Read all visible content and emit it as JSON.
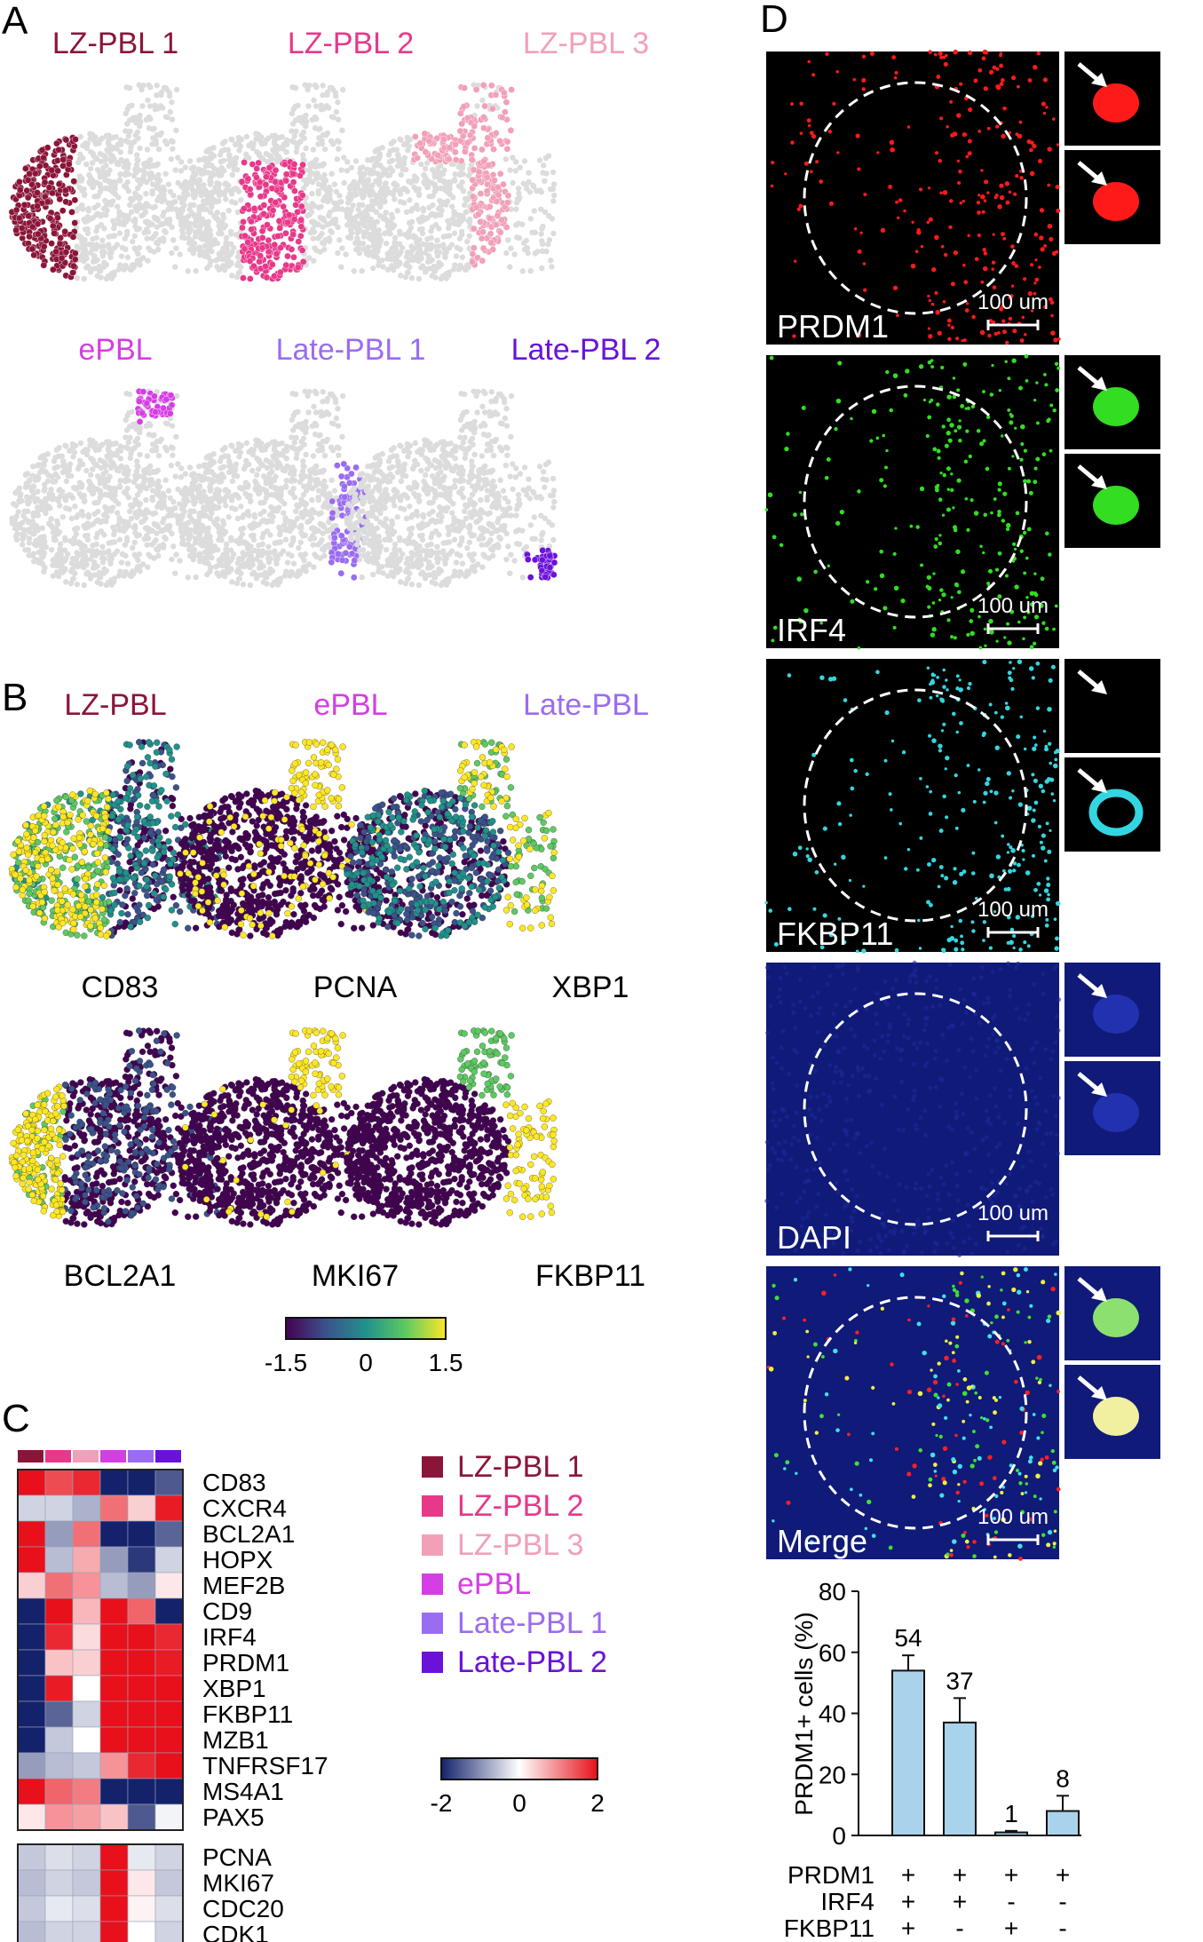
{
  "panel_letters": [
    "A",
    "B",
    "C",
    "D"
  ],
  "colors": {
    "LZ-PBL 1": "#8b1538",
    "LZ-PBL 2": "#e8388a",
    "LZ-PBL 3": "#f2a0b8",
    "ePBL": "#d53ee3",
    "Late-PBL 1": "#9a6cf2",
    "Late-PBL 2": "#6a12d8",
    "umap_background": "#dcdcdc"
  },
  "panelA": {
    "clusters": [
      "LZ-PBL 1",
      "LZ-PBL 2",
      "LZ-PBL 3",
      "ePBL",
      "Late-PBL 1",
      "Late-PBL 2"
    ]
  },
  "panelB": {
    "headers": [
      "LZ-PBL",
      "ePBL",
      "Late-PBL"
    ],
    "genes_row1": [
      "CD83",
      "PCNA",
      "XBP1"
    ],
    "genes_row2": [
      "BCL2A1",
      "MKI67",
      "FKBP11"
    ],
    "colorbar": {
      "ticks": [
        "-1.5",
        "0",
        "1.5"
      ],
      "colormap": "viridis"
    }
  },
  "panelC": {
    "column_groups": [
      "LZ-PBL 1",
      "LZ-PBL 2",
      "LZ-PBL 3",
      "ePBL",
      "Late-PBL 1",
      "Late-PBL 2"
    ],
    "genes_main": [
      "CD83",
      "CXCR4",
      "BCL2A1",
      "HOPX",
      "MEF2B",
      "CD9",
      "IRF4",
      "PRDM1",
      "XBP1",
      "FKBP11",
      "MZB1",
      "TNFRSF17",
      "MS4A1",
      "PAX5"
    ],
    "genes_cycle": [
      "PCNA",
      "MKI67",
      "CDC20",
      "CDK1"
    ],
    "values_main": [
      [
        2,
        1.5,
        1.8,
        -2,
        -2,
        -1.5
      ],
      [
        -0.4,
        -0.4,
        -0.7,
        1.2,
        0.4,
        1.9
      ],
      [
        2,
        -0.9,
        1.2,
        -2,
        -2,
        -1.4
      ],
      [
        2,
        -0.6,
        0.7,
        -0.9,
        -1.8,
        -0.4
      ],
      [
        0.4,
        1.2,
        0.9,
        -0.6,
        -0.9,
        0.2
      ],
      [
        -2,
        2,
        0.6,
        2,
        1.3,
        -2
      ],
      [
        -2,
        1.8,
        0.3,
        2,
        2,
        1.8
      ],
      [
        -2,
        0.5,
        0.4,
        2,
        2,
        1.9
      ],
      [
        -2,
        1.9,
        0.0,
        2,
        2,
        2
      ],
      [
        -2,
        -1.4,
        -0.4,
        2,
        2,
        2
      ],
      [
        -2,
        -0.5,
        0.0,
        2,
        2,
        2
      ],
      [
        -0.9,
        -0.6,
        -0.5,
        0.9,
        1.8,
        2
      ],
      [
        2,
        1.3,
        1.1,
        -2,
        -2,
        -2
      ],
      [
        0.2,
        0.9,
        0.8,
        0.5,
        -1.5,
        -0.1
      ]
    ],
    "values_cycle": [
      [
        -0.5,
        -0.3,
        -0.4,
        2,
        -0.2,
        -0.4
      ],
      [
        -0.6,
        -0.4,
        -0.5,
        2,
        0.2,
        -0.5
      ],
      [
        -0.5,
        -0.2,
        -0.3,
        2,
        0.1,
        -0.3
      ],
      [
        -0.6,
        -0.4,
        -0.4,
        2,
        0.0,
        -0.4
      ]
    ],
    "legend": [
      "LZ-PBL 1",
      "LZ-PBL 2",
      "LZ-PBL 3",
      "ePBL",
      "Late-PBL 1",
      "Late-PBL 2"
    ],
    "colorbar": {
      "ticks": [
        "-2",
        "0",
        "2"
      ],
      "colormap": "blue-white-red"
    }
  },
  "panelD": {
    "channels": [
      {
        "name": "PRDM1",
        "color": "#ff1a1a",
        "bg": "#000000"
      },
      {
        "name": "IRF4",
        "color": "#33dd22",
        "bg": "#000000"
      },
      {
        "name": "FKBP11",
        "color": "#33d6e0",
        "bg": "#000000"
      },
      {
        "name": "DAPI",
        "color": "#2233bb",
        "bg": "#101a78"
      },
      {
        "name": "Merge",
        "color": "#e8e040",
        "bg": "#101a78"
      }
    ],
    "scale_bar": "100 um"
  },
  "chart_data": {
    "type": "bar",
    "categories": [
      "PRDM1+ IRF4+ FKBP11+",
      "PRDM1+ IRF4+ FKBP11-",
      "PRDM1+ IRF4- FKBP11+",
      "PRDM1+ IRF4- FKBP11-"
    ],
    "values": [
      54,
      37,
      1,
      8
    ],
    "errors": [
      5,
      8,
      0.5,
      5
    ],
    "data_labels": [
      "54",
      "37",
      "1",
      "8"
    ],
    "ylabel": "PRDM1+ cells (%)",
    "ylim": [
      0,
      80
    ],
    "yticks": [
      "0",
      "20",
      "40",
      "60",
      "80"
    ],
    "bar_color": "#a9d3ea",
    "row_labels": [
      "PRDM1",
      "IRF4",
      "FKBP11"
    ],
    "sign_table": [
      [
        "+",
        "+",
        "+",
        "+"
      ],
      [
        "+",
        "+",
        "-",
        "-"
      ],
      [
        "+",
        "-",
        "+",
        "-"
      ]
    ]
  }
}
